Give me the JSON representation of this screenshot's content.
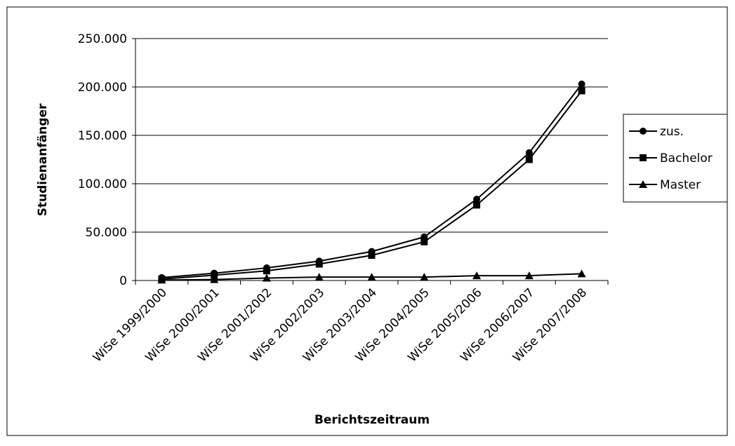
{
  "chart_data": {
    "type": "line",
    "x_label": "Berichtszeitraum",
    "y_label": "Studienanfänger",
    "categories": [
      "WiSe 1999/2000",
      "WiSe 2000/2001",
      "WiSe 2001/2002",
      "WiSe 2002/2003",
      "WiSe 2003/2004",
      "WiSe 2004/2005",
      "WiSe 2005/2006",
      "WiSe 2006/2007",
      "WiSe 2007/2008"
    ],
    "series": [
      {
        "name": "zus.",
        "color": "#000000",
        "marker": "circle",
        "values": [
          3000,
          7500,
          13000,
          20000,
          30000,
          45000,
          84000,
          132000,
          203000
        ]
      },
      {
        "name": "Bachelor",
        "color": "#000000",
        "marker": "square",
        "values": [
          1500,
          5500,
          10000,
          17000,
          26000,
          40000,
          78000,
          125000,
          196000
        ]
      },
      {
        "name": "Master",
        "color": "#000000",
        "marker": "triangle",
        "values": [
          500,
          1000,
          2500,
          3500,
          3500,
          3500,
          5000,
          5000,
          7000
        ]
      }
    ],
    "ylim": [
      0,
      250000
    ],
    "yticks": [
      0,
      {
        "value": 50000,
        "label": "50.000"
      },
      {
        "value": 100000,
        "label": "100.000"
      },
      {
        "value": 150000,
        "label": "150.000"
      },
      {
        "value": 200000,
        "label": "200.000"
      },
      {
        "value": 250000,
        "label": "250.000"
      }
    ],
    "grid": true,
    "legend": "right"
  }
}
